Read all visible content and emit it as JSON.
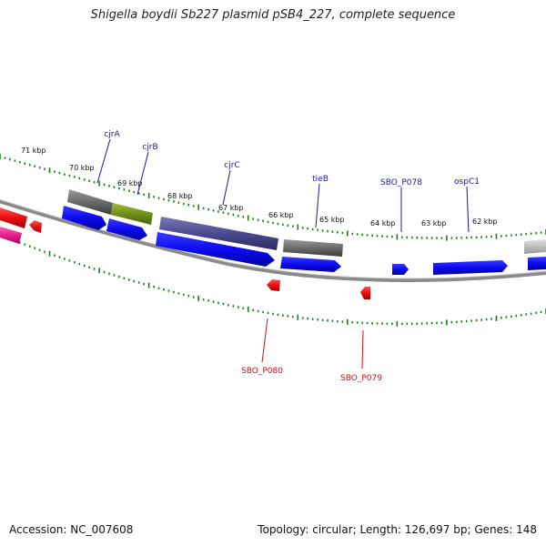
{
  "title": "Shigella boydii Sb227 plasmid pSB4_227, complete sequence",
  "footer": {
    "accession": "Accession: NC_007608",
    "summary": "Topology: circular; Length: 126,697 bp; Genes: 148"
  },
  "colors": {
    "backbone": "#8a8a8a",
    "tick": "#1a7a1a",
    "forward_gene": "#0b0bf0",
    "reverse_gene": "#e81010",
    "label_forward": "#1a1aa0",
    "label_reverse": "#cc1010",
    "grey_feature": "#6b6b6b",
    "olive_feature": "#6f8f1c",
    "purple_feature": "#4a4a8f",
    "pink_feature": "#e81e8c"
  },
  "ticks": [
    {
      "label": "71 kbp"
    },
    {
      "label": "70 kbp"
    },
    {
      "label": "69 kbp"
    },
    {
      "label": "68 kbp"
    },
    {
      "label": "67 kbp"
    },
    {
      "label": "66 kbp"
    },
    {
      "label": "65 kbp"
    },
    {
      "label": "64 kbp"
    },
    {
      "label": "63 kbp"
    },
    {
      "label": "62 kbp"
    }
  ],
  "genes_top": [
    {
      "label": "cjrA"
    },
    {
      "label": "cjrB"
    },
    {
      "label": "cjrC"
    },
    {
      "label": "tieB"
    },
    {
      "label": "SBO_P078"
    },
    {
      "label": "ospC1"
    }
  ],
  "genes_bottom": [
    {
      "label": "SBO_P080"
    },
    {
      "label": "SBO_P079"
    }
  ]
}
